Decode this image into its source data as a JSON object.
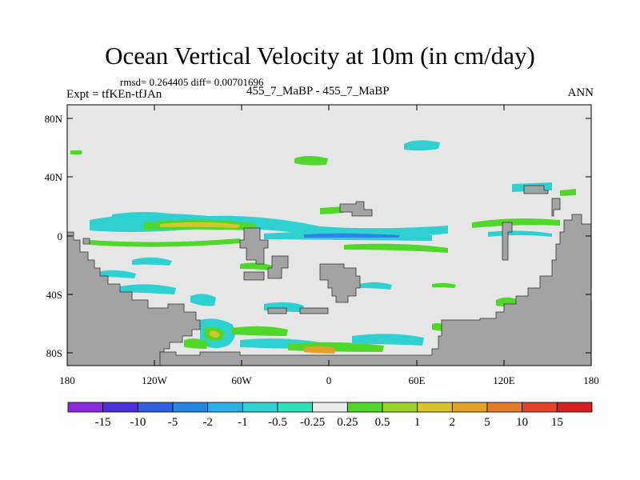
{
  "header": {
    "title": "Ocean Vertical Velocity at 10m (in cm/day)",
    "stats": "rmsd= 0.264405 diff= 0.00701696",
    "expt": "Expt = tfKEn-tfJAn",
    "case": "455_7_MaBP - 455_7_MaBP",
    "season": "ANN"
  },
  "axes": {
    "y_ticks": [
      "80N",
      "40N",
      "0",
      "40S",
      "80S"
    ],
    "x_ticks": [
      "180",
      "120W",
      "60W",
      "0",
      "60E",
      "120E",
      "180"
    ]
  },
  "colorbar": {
    "labels": [
      "-15",
      "-10",
      "-5",
      "-2",
      "-1",
      "-0.5",
      "-0.25",
      "0.25",
      "0.5",
      "1",
      "2",
      "5",
      "10",
      "15"
    ],
    "colors": [
      "#8a2be2",
      "#4b2fd9",
      "#2f5fe0",
      "#2a86e6",
      "#2ab0e6",
      "#2fd0d0",
      "#2ee0b8",
      "#ebebeb",
      "#4fd82a",
      "#9ad22a",
      "#d8c42a",
      "#e2a22a",
      "#e57a2a",
      "#e2442a",
      "#d81f1f"
    ]
  },
  "colors": {
    "land": "#a3a3a3",
    "background": "#e6e6e6"
  }
}
